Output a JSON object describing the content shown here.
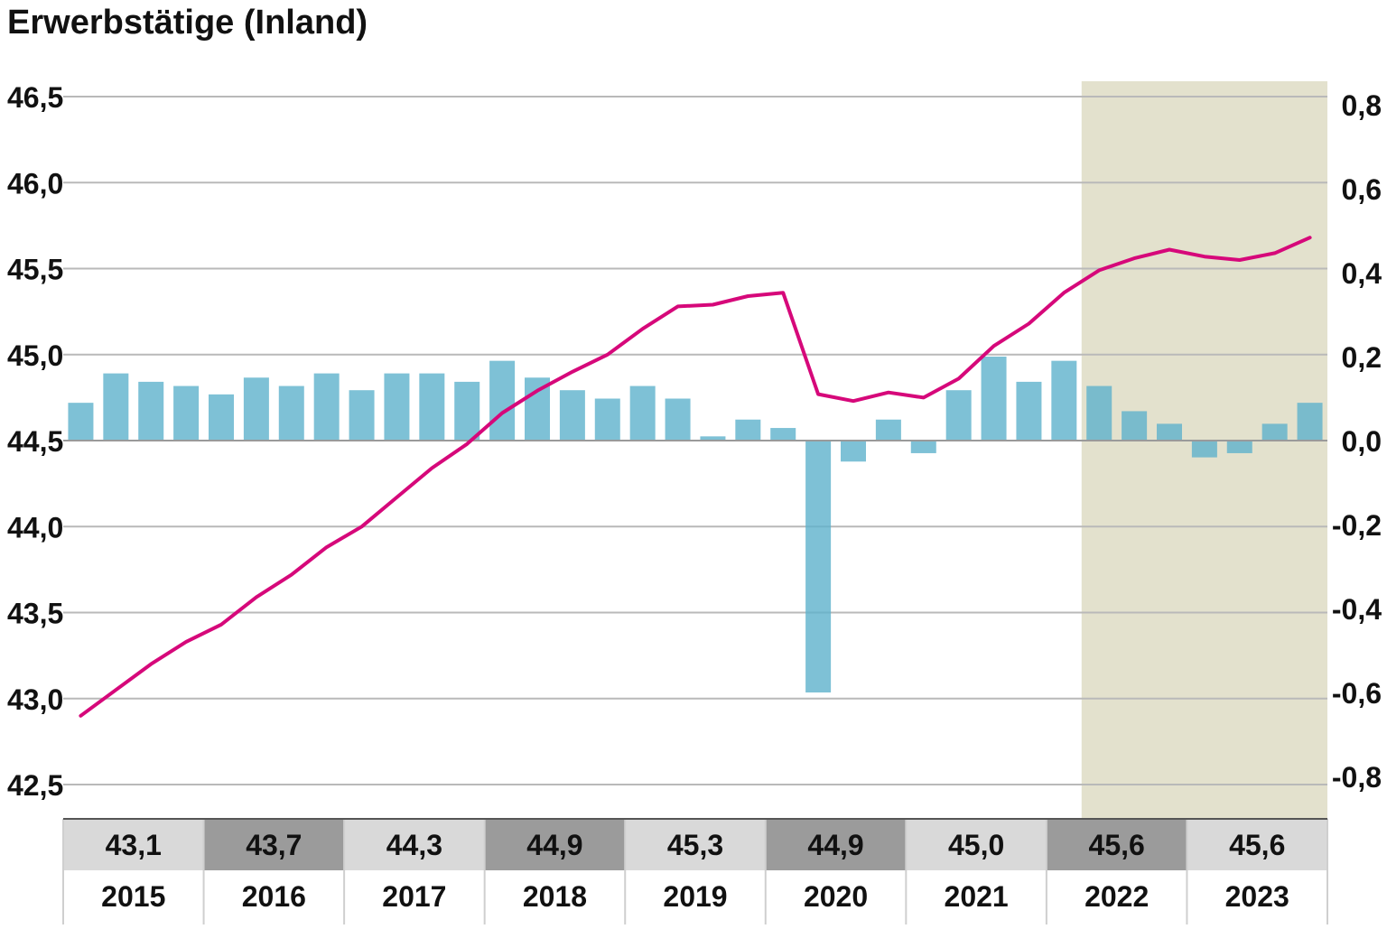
{
  "title": "Erwerbstätige (Inland)",
  "chart_data": {
    "type": "bar+line",
    "title": "Erwerbstätige (Inland)",
    "left_axis": {
      "ylim": [
        42.5,
        46.5
      ],
      "ticks": [
        "42,5",
        "43,0",
        "43,5",
        "44,0",
        "44,5",
        "45,0",
        "45,5",
        "46,0",
        "46,5"
      ],
      "tick_values": [
        42.5,
        43.0,
        43.5,
        44.0,
        44.5,
        45.0,
        45.5,
        46.0,
        46.5
      ]
    },
    "right_axis": {
      "ylim": [
        -0.8,
        0.8
      ],
      "ticks": [
        "-0,8",
        "-0,6",
        "-0,4",
        "-0,2",
        "0,0",
        "0,2",
        "0,4",
        "0,6",
        "0,8"
      ],
      "tick_values": [
        -0.8,
        -0.6,
        -0.4,
        -0.2,
        0.0,
        0.2,
        0.4,
        0.6,
        0.8
      ]
    },
    "quarters_per_year": 4,
    "years": [
      "2015",
      "2016",
      "2017",
      "2018",
      "2019",
      "2020",
      "2021",
      "2022",
      "2023"
    ],
    "annual_values": [
      "43,1",
      "43,7",
      "44,3",
      "44,9",
      "45,3",
      "44,9",
      "45,0",
      "45,6",
      "45,6"
    ],
    "forecast_start_year": "2022",
    "forecast_start_quarter_index": 29,
    "series": [
      {
        "name": "",
        "kind": "line",
        "axis": "left",
        "color": "#d6087a",
        "values": [
          42.9,
          43.05,
          43.2,
          43.33,
          43.43,
          43.59,
          43.72,
          43.88,
          44.0,
          44.17,
          44.34,
          44.48,
          44.66,
          44.79,
          44.9,
          45.0,
          45.15,
          45.28,
          45.29,
          45.34,
          45.36,
          44.77,
          44.73,
          44.78,
          44.75,
          44.86,
          45.05,
          45.18,
          45.36,
          45.49,
          45.56,
          45.61,
          45.57,
          45.55,
          45.59,
          45.68
        ]
      },
      {
        "name": "",
        "kind": "bar",
        "axis": "right",
        "color": "#5eb2cc",
        "values": [
          0.09,
          0.16,
          0.14,
          0.13,
          0.11,
          0.15,
          0.13,
          0.16,
          0.12,
          0.16,
          0.16,
          0.14,
          0.19,
          0.15,
          0.12,
          0.1,
          0.13,
          0.1,
          0.01,
          0.05,
          0.03,
          -0.6,
          -0.05,
          0.05,
          -0.03,
          0.12,
          0.2,
          0.14,
          0.19,
          0.13,
          0.07,
          0.04,
          -0.04,
          -0.03,
          0.04,
          0.09
        ]
      }
    ],
    "grid": true
  },
  "colors": {
    "line": "#d6087a",
    "bar": "#5eb2cc",
    "forecast_band": "#d4d1b2",
    "grid": "#b9b9b9",
    "table_light": "#d9d9d9",
    "table_dark": "#9b9b9b"
  }
}
